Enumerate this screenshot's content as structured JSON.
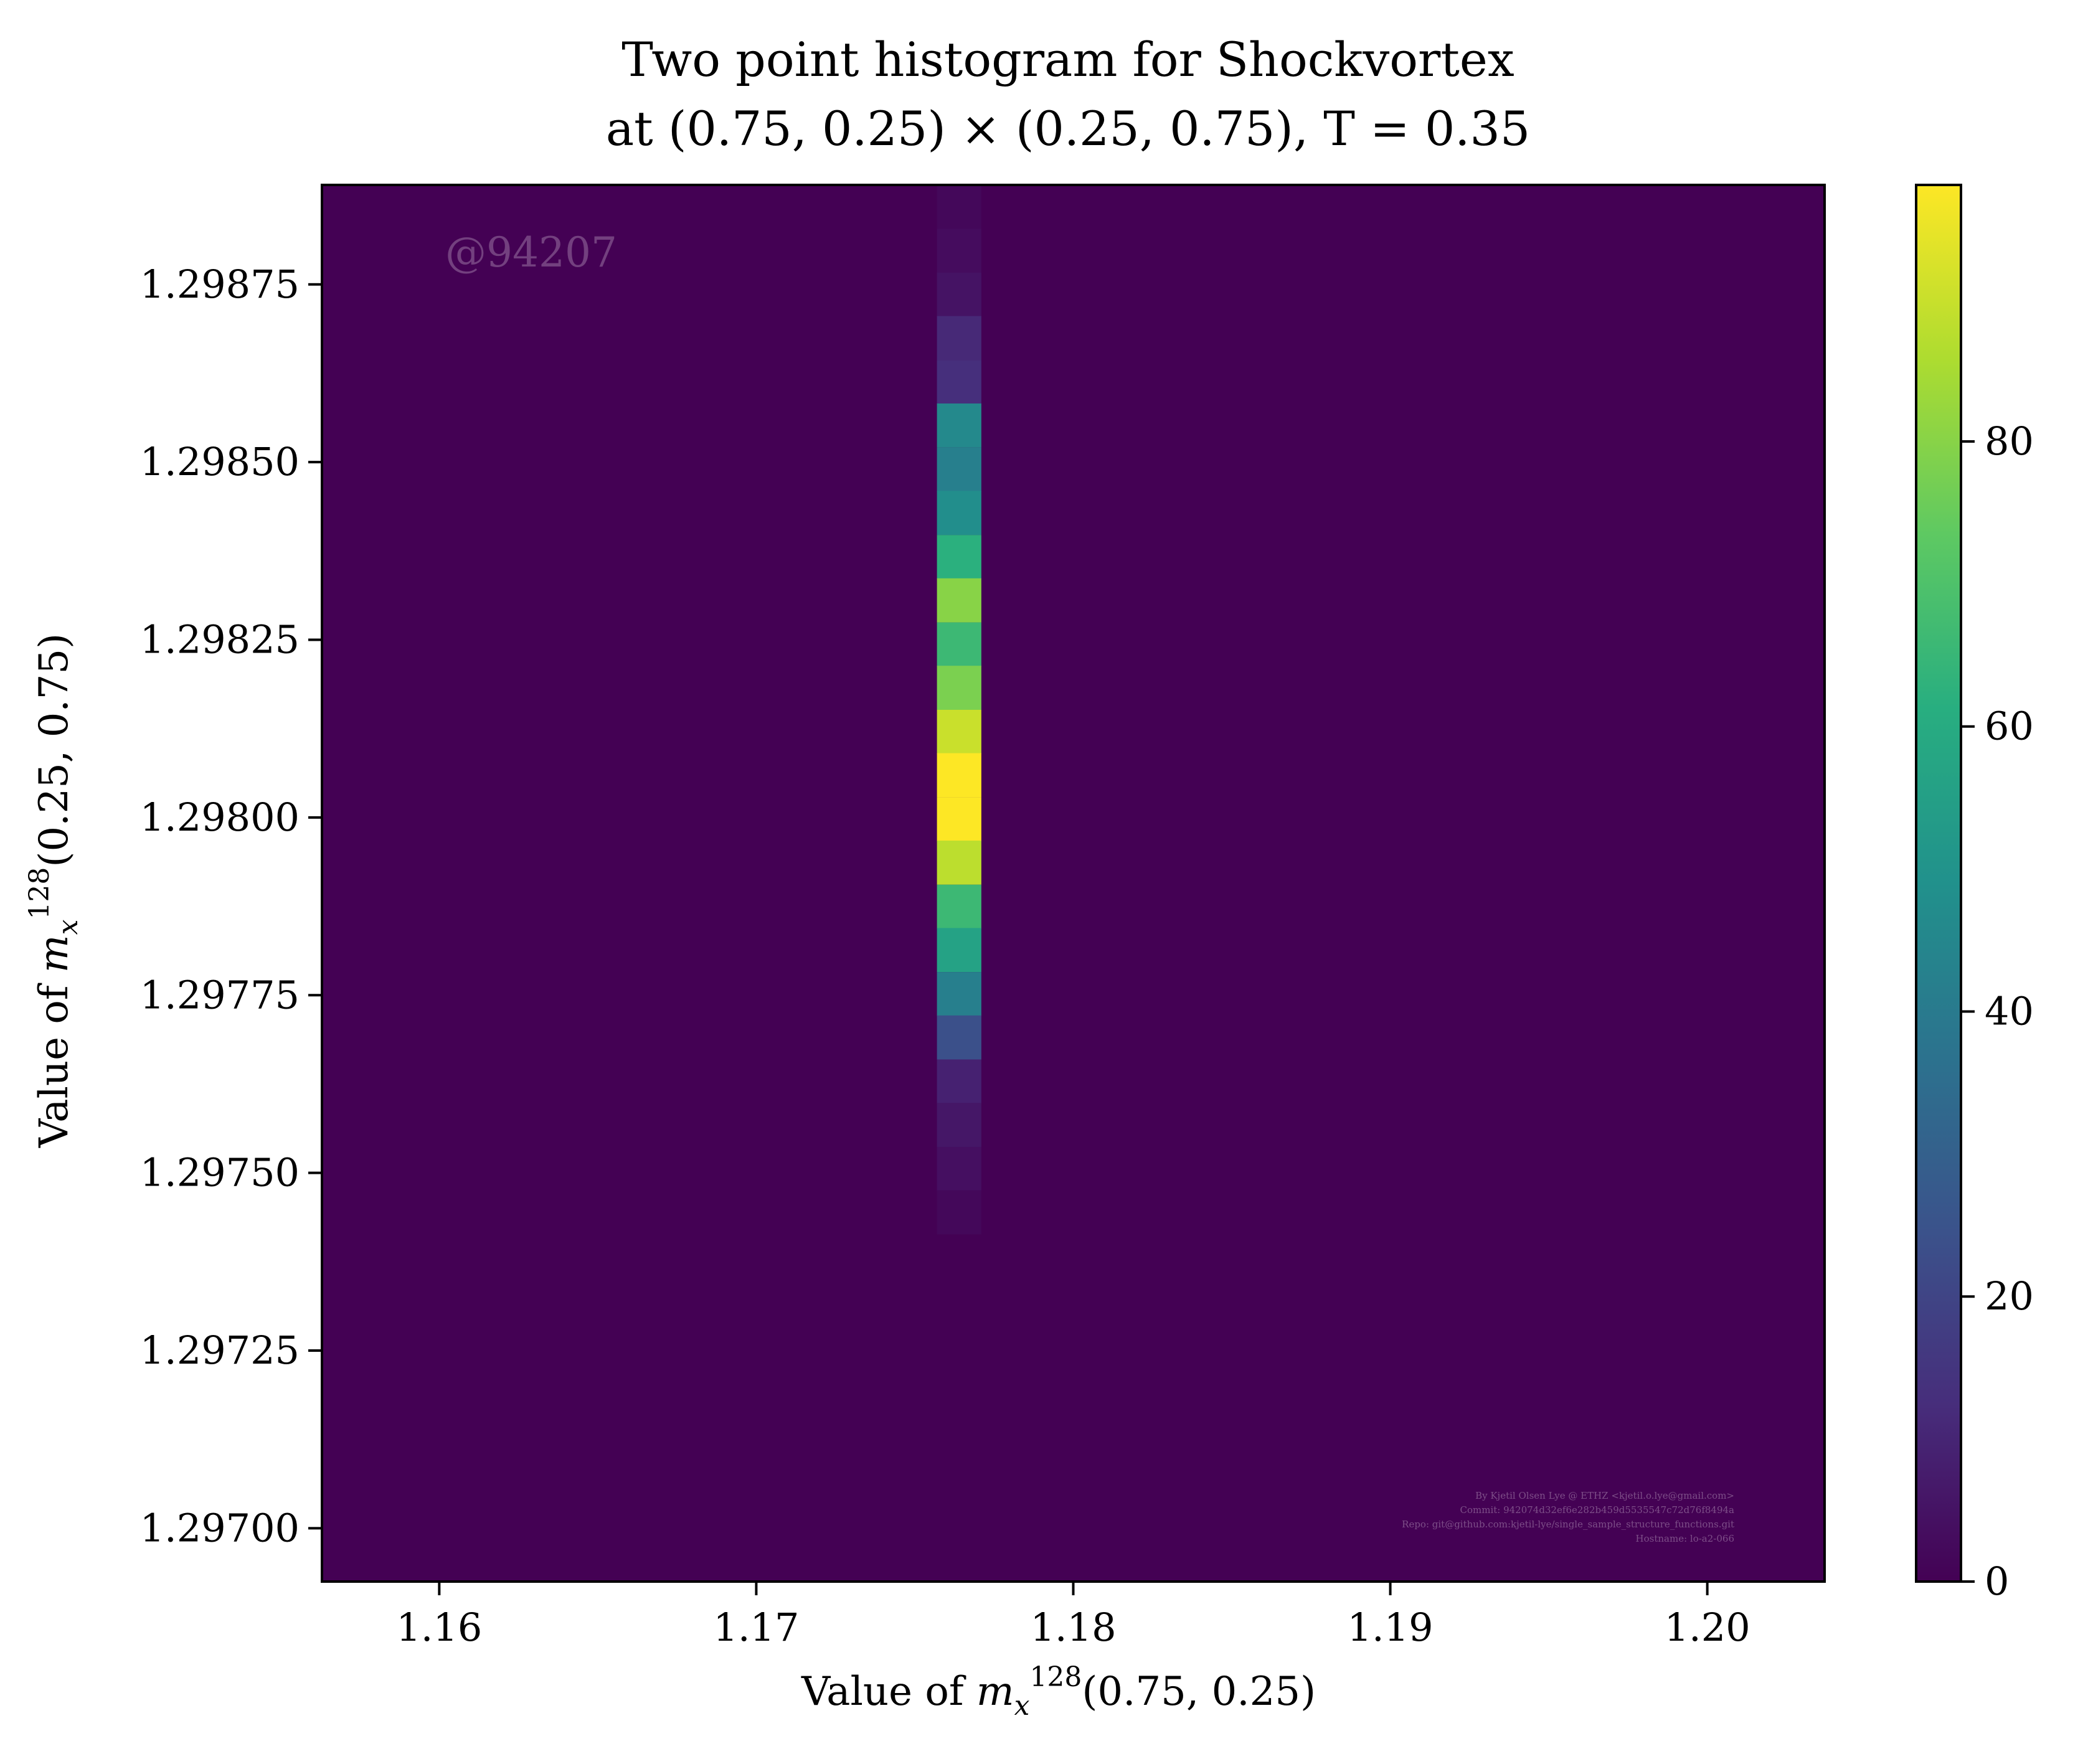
{
  "chart_data": {
    "type": "heatmap",
    "title_lines": [
      "Two point histogram for Shockvortex",
      "at (0.75, 0.25) × (0.25, 0.75), T = 0.35"
    ],
    "xlabel": "Value of m_x^128(0.75, 0.25)",
    "ylabel": "Value of m_x^128(0.25, 0.75)",
    "xlim": [
      1.1563,
      1.2037
    ],
    "ylim": [
      1.296925,
      1.29889
    ],
    "x_ticks": [
      {
        "value": 1.16,
        "label": "1.16"
      },
      {
        "value": 1.17,
        "label": "1.17"
      },
      {
        "value": 1.18,
        "label": "1.18"
      },
      {
        "value": 1.19,
        "label": "1.19"
      },
      {
        "value": 1.2,
        "label": "1.20"
      }
    ],
    "y_ticks": [
      {
        "value": 1.297,
        "label": "1.29700"
      },
      {
        "value": 1.29725,
        "label": "1.29725"
      },
      {
        "value": 1.2975,
        "label": "1.29750"
      },
      {
        "value": 1.29775,
        "label": "1.29775"
      },
      {
        "value": 1.298,
        "label": "1.29800"
      },
      {
        "value": 1.29825,
        "label": "1.29825"
      },
      {
        "value": 1.2985,
        "label": "1.29850"
      },
      {
        "value": 1.29875,
        "label": "1.29875"
      }
    ],
    "column_x_range": [
      1.1757,
      1.1771
    ],
    "bin_height": 6.15e-05,
    "column_bins": [
      {
        "y0": 1.298828,
        "count": 2
      },
      {
        "y0": 1.298767,
        "count": 3
      },
      {
        "y0": 1.298705,
        "count": 5
      },
      {
        "y0": 1.298644,
        "count": 11
      },
      {
        "y0": 1.298582,
        "count": 13
      },
      {
        "y0": 1.298521,
        "count": 46
      },
      {
        "y0": 1.298459,
        "count": 42
      },
      {
        "y0": 1.298398,
        "count": 48
      },
      {
        "y0": 1.298336,
        "count": 62
      },
      {
        "y0": 1.298275,
        "count": 80
      },
      {
        "y0": 1.298213,
        "count": 66
      },
      {
        "y0": 1.298152,
        "count": 78
      },
      {
        "y0": 1.29809,
        "count": 90
      },
      {
        "y0": 1.298029,
        "count": 98
      },
      {
        "y0": 1.297967,
        "count": 98
      },
      {
        "y0": 1.297906,
        "count": 88
      },
      {
        "y0": 1.297844,
        "count": 66
      },
      {
        "y0": 1.297783,
        "count": 56
      },
      {
        "y0": 1.297721,
        "count": 42
      },
      {
        "y0": 1.29766,
        "count": 24
      },
      {
        "y0": 1.297598,
        "count": 9
      },
      {
        "y0": 1.297537,
        "count": 6
      },
      {
        "y0": 1.297475,
        "count": 4
      },
      {
        "y0": 1.297414,
        "count": 2
      }
    ],
    "colorbar": {
      "colormap": "viridis",
      "vmin": 0,
      "vmax": 98,
      "ticks": [
        {
          "value": 0,
          "label": "0"
        },
        {
          "value": 20,
          "label": "20"
        },
        {
          "value": 40,
          "label": "40"
        },
        {
          "value": 60,
          "label": "60"
        },
        {
          "value": 80,
          "label": "80"
        }
      ]
    },
    "watermark": "@94207",
    "credits": [
      "By Kjetil Olsen Lye @ ETHZ <kjetil.o.lye@gmail.com>",
      "Commit: 942074d32ef6e282b459d5535547c72d76f8494a",
      "Repo: git@github.com:kjetil-lye/single_sample_structure_functions.git",
      "Hostname: lo-a2-066"
    ],
    "colors": {
      "background": "#440154",
      "frame": "#000000"
    }
  }
}
